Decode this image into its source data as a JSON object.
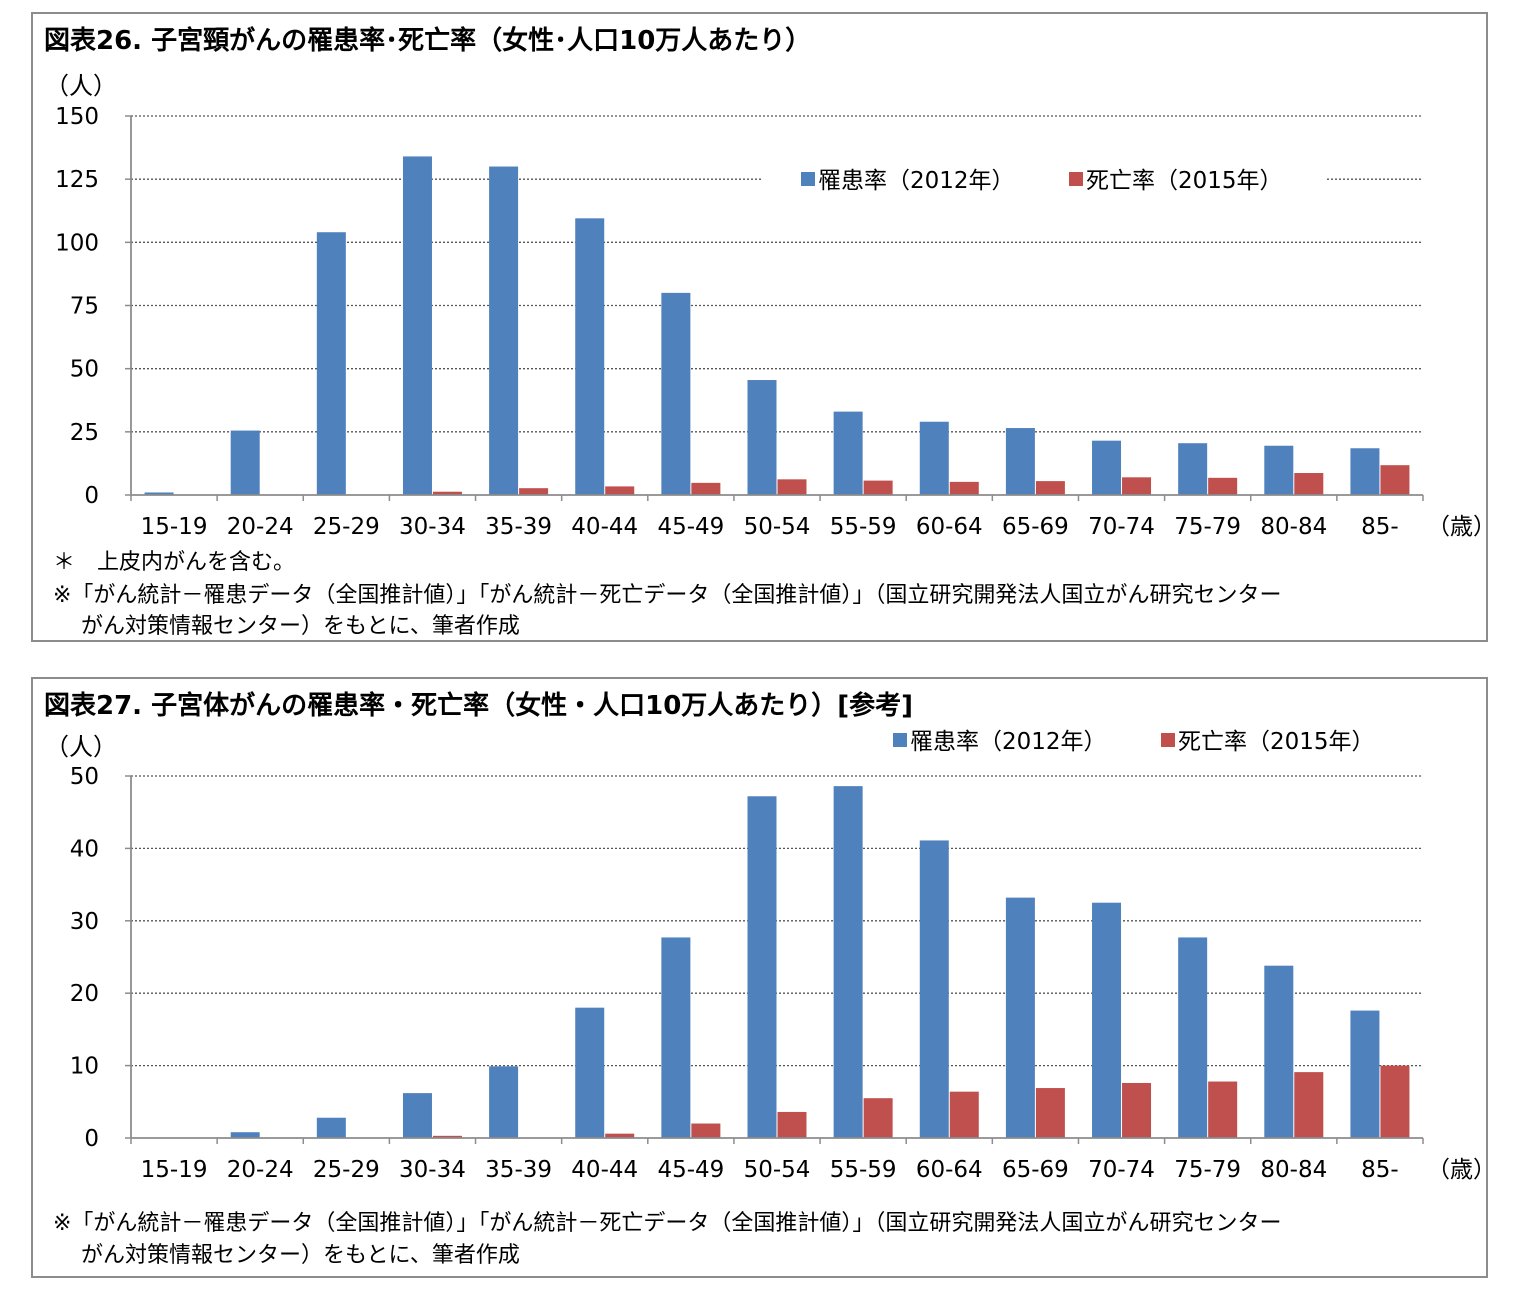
{
  "charts": [
    {
      "id": "chart26",
      "title": "図表26. 子宮頸がんの罹患率･死亡率（女性･人口10万人あたり）",
      "unit_label": "（人）",
      "x_unit_label": "（歳）",
      "notes": [
        "＊　上皮内がんを含む。",
        "※「がん統計－罹患データ（全国推計値）」「がん統計－死亡データ（全国推計値）」（国立研究開発法人国立がん研究センター",
        "がん対策情報センター）をもとに、筆者作成"
      ]
    },
    {
      "id": "chart27",
      "title": "図表27. 子宮体がんの罹患率・死亡率（女性・人口10万人あたり）[参考]",
      "unit_label": "（人）",
      "x_unit_label": "（歳）",
      "notes": [
        "※「がん統計－罹患データ（全国推計値）」「がん統計－死亡データ（全国推計値）」（国立研究開発法人国立がん研究センター",
        "がん対策情報センター）をもとに、筆者作成"
      ]
    }
  ],
  "colors": {
    "incidence": "#4f81bd",
    "mortality": "#c0504d",
    "grid": "#555555",
    "axis": "#8c8c8c"
  },
  "chart_data": [
    {
      "type": "bar",
      "title": "図表26. 子宮頸がんの罹患率･死亡率（女性･人口10万人あたり）",
      "xlabel": "（歳）",
      "ylabel": "（人）",
      "ylim": [
        0,
        150
      ],
      "yticks": [
        0,
        25,
        50,
        75,
        100,
        125,
        150
      ],
      "grid": true,
      "legend_position": "top-right",
      "categories": [
        "15-19",
        "20-24",
        "25-29",
        "30-34",
        "35-39",
        "40-44",
        "45-49",
        "50-54",
        "55-59",
        "60-64",
        "65-69",
        "70-74",
        "75-79",
        "80-84",
        "85-"
      ],
      "series": [
        {
          "name": "罹患率（2012年）",
          "values": [
            1.0,
            25.5,
            104,
            134,
            130,
            109.5,
            80,
            45.5,
            33,
            29,
            26.5,
            21.5,
            20.5,
            19.5,
            18.5
          ]
        },
        {
          "name": "死亡率（2015年）",
          "values": [
            0,
            0,
            0.2,
            1.3,
            2.7,
            3.4,
            4.8,
            6.2,
            5.7,
            5.2,
            5.5,
            7.0,
            6.8,
            8.7,
            11.8
          ]
        }
      ]
    },
    {
      "type": "bar",
      "title": "図表27. 子宮体がんの罹患率・死亡率（女性・人口10万人あたり）[参考]",
      "xlabel": "（歳）",
      "ylabel": "（人）",
      "ylim": [
        0,
        50
      ],
      "yticks": [
        0,
        10,
        20,
        30,
        40,
        50
      ],
      "grid": true,
      "legend_position": "top-right",
      "categories": [
        "15-19",
        "20-24",
        "25-29",
        "30-34",
        "35-39",
        "40-44",
        "45-49",
        "50-54",
        "55-59",
        "60-64",
        "65-69",
        "70-74",
        "75-79",
        "80-84",
        "85-"
      ],
      "series": [
        {
          "name": "罹患率（2012年）",
          "values": [
            0,
            0.8,
            2.8,
            6.2,
            9.9,
            18.0,
            27.7,
            47.2,
            48.6,
            41.1,
            33.2,
            32.5,
            27.7,
            23.8,
            17.6
          ]
        },
        {
          "name": "死亡率（2015年）",
          "values": [
            0,
            0,
            0,
            0.3,
            0,
            0.6,
            2.0,
            3.6,
            5.5,
            6.4,
            6.9,
            7.6,
            7.8,
            9.1,
            10.0
          ]
        }
      ]
    }
  ]
}
